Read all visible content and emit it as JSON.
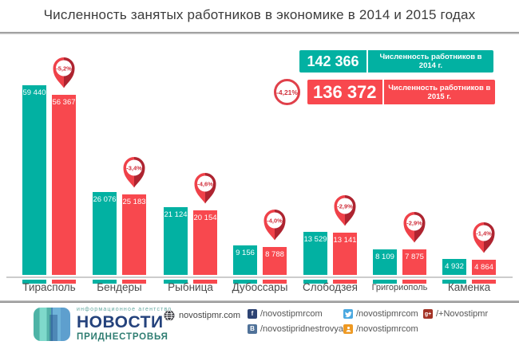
{
  "title": "Численность занятых работников в экономике в 2014 и 2015 годах",
  "colors": {
    "teal": "#02b1a2",
    "red": "#f8484e",
    "pin_light": "#ef4149",
    "pin_dark": "#ae2430",
    "pin_text": "#d0303c",
    "axis_line": "#cccccc"
  },
  "legend": {
    "total_2014": "142 366",
    "label_2014": "Численность работников в 2014 г.",
    "total_2015": "136 372",
    "label_2015": "Численность работников в 2015 г.",
    "change_badge": "-4,21%"
  },
  "chart_data": {
    "type": "bar",
    "title": "Численность занятых работников в экономике в 2014 и 2015 годах",
    "categories": [
      "Тирасполь",
      "Бендеры",
      "Рыбница",
      "Дубоссары",
      "Слободзея",
      "Григориополь",
      "Каменка"
    ],
    "series": [
      {
        "name": "Численность работников в 2014 г.",
        "color": "#02b1a2",
        "values": [
          59440,
          26076,
          21124,
          9156,
          13529,
          8109,
          4932
        ],
        "labels": [
          "59 440",
          "26 076",
          "21 124",
          "9 156",
          "13 529",
          "8 109",
          "4 932"
        ]
      },
      {
        "name": "Численность работников в 2015 г.",
        "color": "#f8484e",
        "values": [
          56367,
          25183,
          20154,
          8788,
          13141,
          7875,
          4864
        ],
        "labels": [
          "56 367",
          "25 183",
          "20 154",
          "8 788",
          "13 141",
          "7 875",
          "4 864"
        ]
      }
    ],
    "change_percent": [
      "-5,2%",
      "-3,4%",
      "-4,6%",
      "-4,0%",
      "-2,9%",
      "-2,9%",
      "-1,4%"
    ],
    "totals": {
      "2014": 142366,
      "2015": 136372,
      "change": "-4,21%"
    },
    "ylim": [
      0,
      60000
    ],
    "grid": false,
    "legend_position": "top-right"
  },
  "footer": {
    "agency_tagline": "информационное агентство",
    "agency_name": "НОВОСТИ",
    "agency_sub": "ПРИДНЕСТРОВЬЯ",
    "website": {
      "text": "novostipmr.com"
    },
    "socials": [
      {
        "network": "facebook",
        "text": "/novostipmrcom",
        "color": "#2d4373",
        "glyph": "f"
      },
      {
        "network": "twitter",
        "text": "/novostipmrcom",
        "color": "#4aa8e0",
        "glyph": ""
      },
      {
        "network": "google-plus",
        "text": "/+Novostipmr",
        "color": "#a33225",
        "glyph": "g+"
      },
      {
        "network": "vk",
        "text": "/novostipridnestrovya",
        "color": "#507299",
        "glyph": "B"
      },
      {
        "network": "odnoklassniki",
        "text": "/novostipmrcom",
        "color": "#ee9922",
        "glyph": ""
      }
    ]
  }
}
